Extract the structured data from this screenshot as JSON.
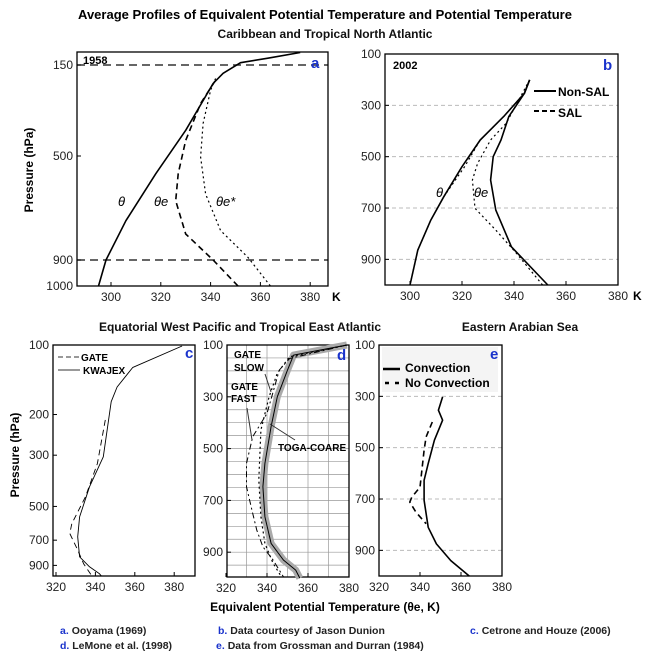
{
  "title": "Average Profiles of Equivalent Potential Temperature and Potential Temperature",
  "subtitle_top": "Caribbean and Tropical North Atlantic",
  "subtitle_bottom_left": "Equatorial West Pacific and Tropical East Atlantic",
  "subtitle_bottom_right": "Eastern Arabian Sea",
  "ylabel": "Pressure (hPa)",
  "xlabel": "Equivalent Potential Temperature (θe, K)",
  "k_unit": "K",
  "credits": [
    {
      "letter": "a.",
      "text": "Ooyama (1969)"
    },
    {
      "letter": "b.",
      "text": "Data courtesy of Jason Dunion"
    },
    {
      "letter": "c.",
      "text": "Cetrone and Houze (2006)"
    },
    {
      "letter": "d.",
      "text": "LeMone et al. (1998)"
    },
    {
      "letter": "e.",
      "text": "Data from Grossman and Durran (1984)"
    }
  ],
  "colors": {
    "panel_letter": "#1a33cc",
    "band": "#aaaaaa",
    "grid": "#bbbbbb"
  },
  "chart_data": [
    {
      "type": "line",
      "panel": "a",
      "year": "1958",
      "xlabel": "K",
      "ylabel": "Pressure (hPa)",
      "xlim": [
        286,
        386
      ],
      "ylim": [
        1000,
        100
      ],
      "xticks": [
        300,
        320,
        340,
        360,
        380
      ],
      "yticks": [
        150,
        500,
        900,
        1000
      ],
      "reference_lines_hpa": [
        150,
        900
      ],
      "annotations": [
        "θ",
        "θe",
        "θe*"
      ],
      "series": [
        {
          "name": "θ",
          "style": "solid",
          "points": [
            [
              295,
              1000
            ],
            [
              298,
              900
            ],
            [
              306,
              749
            ],
            [
              318,
              568
            ],
            [
              330,
              401
            ],
            [
              341,
              221
            ],
            [
              345,
              182
            ],
            [
              352,
              141
            ],
            [
              363,
              124
            ],
            [
              376,
              102
            ]
          ]
        },
        {
          "name": "θe",
          "style": "dashed",
          "points": [
            [
              351,
              1000
            ],
            [
              341,
              900
            ],
            [
              330,
              800
            ],
            [
              326,
              672
            ],
            [
              327,
              568
            ],
            [
              330,
              440
            ],
            [
              336,
              298
            ],
            [
              342,
              208
            ]
          ]
        },
        {
          "name": "θe*",
          "style": "dotted",
          "points": [
            [
              364,
              1000
            ],
            [
              355,
              890
            ],
            [
              344,
              787
            ],
            [
              338,
              646
            ],
            [
              336,
              504
            ],
            [
              337,
              375
            ],
            [
              340,
              247
            ],
            [
              342,
              202
            ]
          ]
        }
      ]
    },
    {
      "type": "line",
      "panel": "b",
      "year": "2002",
      "xlim": [
        290,
        380
      ],
      "ylim": [
        1000,
        100
      ],
      "xticks": [
        300,
        320,
        340,
        360,
        380
      ],
      "yticks": [
        100,
        300,
        500,
        700,
        900
      ],
      "grid": true,
      "legend": [
        "Non-SAL",
        "SAL"
      ],
      "legend_position": "top-right",
      "annotations": [
        "θ",
        "θe"
      ],
      "series": [
        {
          "name": "θ Non-SAL",
          "style": "solid",
          "points": [
            [
              300,
              1000
            ],
            [
              303,
              864
            ],
            [
              308,
              747
            ],
            [
              313,
              656
            ],
            [
              320,
              539
            ],
            [
              327,
              435
            ],
            [
              336,
              344
            ],
            [
              344,
              253
            ],
            [
              346,
              201
            ]
          ]
        },
        {
          "name": "θ SAL",
          "style": "dotted",
          "points": [
            [
              300,
              1000
            ],
            [
              303,
              864
            ],
            [
              308,
              747
            ],
            [
              313,
              656
            ],
            [
              321,
              539
            ],
            [
              327,
              435
            ],
            [
              336,
              344
            ],
            [
              344,
              253
            ],
            [
              346,
              201
            ]
          ]
        },
        {
          "name": "θe Non-SAL",
          "style": "solid",
          "points": [
            [
              353,
              1000
            ],
            [
              339,
              851
            ],
            [
              333,
              708
            ],
            [
              331,
              591
            ],
            [
              332,
              500
            ],
            [
              335,
              435
            ],
            [
              338,
              344
            ],
            [
              344,
              253
            ],
            [
              346,
              201
            ]
          ]
        },
        {
          "name": "θe SAL",
          "style": "dotted",
          "points": [
            [
              351,
              1000
            ],
            [
              341,
              877
            ],
            [
              333,
              786
            ],
            [
              325,
              701
            ],
            [
              324,
              591
            ],
            [
              326,
              526
            ],
            [
              331,
              435
            ],
            [
              337,
              370
            ],
            [
              346,
              201
            ]
          ]
        }
      ]
    },
    {
      "type": "line",
      "panel": "c",
      "xlim": [
        318,
        390
      ],
      "ylim": [
        1000,
        100
      ],
      "yscale": "log",
      "xticks": [
        320,
        340,
        360,
        380
      ],
      "yticks": [
        100,
        200,
        300,
        500,
        700,
        900
      ],
      "legend": [
        "GATE",
        "KWAJEX"
      ],
      "legend_position": "top-left",
      "series": [
        {
          "name": "GATE",
          "style": "dashed",
          "points": [
            [
              345,
              211
            ],
            [
              341,
              326
            ],
            [
              335,
              454
            ],
            [
              328,
              594
            ],
            [
              327,
              655
            ],
            [
              331,
              772
            ],
            [
              334,
              885
            ],
            [
              338,
              995
            ]
          ]
        },
        {
          "name": "KWAJEX",
          "style": "solid",
          "points": [
            [
              384,
              101
            ],
            [
              359,
              125
            ],
            [
              351,
              152
            ],
            [
              348,
              176
            ],
            [
              344,
              305
            ],
            [
              337,
              411
            ],
            [
              332,
              555
            ],
            [
              331,
              677
            ],
            [
              332,
              826
            ],
            [
              337,
              913
            ],
            [
              342,
              977
            ],
            [
              343,
              1000
            ]
          ]
        }
      ]
    },
    {
      "type": "line",
      "panel": "d",
      "xlim": [
        320,
        380
      ],
      "ylim": [
        1000,
        100
      ],
      "xticks": [
        320,
        340,
        360,
        380
      ],
      "yticks": [
        100,
        300,
        500,
        700,
        900
      ],
      "grid": true,
      "labels": [
        "GATE",
        "SLOW",
        "GATE",
        "FAST",
        "TOGA-COARE"
      ],
      "series": [
        {
          "name": "TOGA-COARE",
          "style": "solid-with-band",
          "points": [
            [
              379,
              100
            ],
            [
              353,
              139
            ],
            [
              350,
              197
            ],
            [
              345,
              300
            ],
            [
              342,
              415
            ],
            [
              339,
              557
            ],
            [
              338,
              647
            ],
            [
              339,
              763
            ],
            [
              342,
              866
            ],
            [
              348,
              930
            ],
            [
              354,
              969
            ],
            [
              356,
              1000
            ]
          ]
        },
        {
          "name": "GATE SLOW",
          "style": "dotted",
          "points": [
            [
              379,
              100
            ],
            [
              351,
              145
            ],
            [
              345,
              209
            ],
            [
              341,
              300
            ],
            [
              337,
              428
            ],
            [
              336,
              621
            ],
            [
              337,
              763
            ],
            [
              339,
              866
            ],
            [
              343,
              943
            ],
            [
              347,
              995
            ]
          ]
        },
        {
          "name": "GATE FAST",
          "style": "dash-dot",
          "points": [
            [
              379,
              100
            ],
            [
              351,
              152
            ],
            [
              346,
              197
            ],
            [
              340,
              364
            ],
            [
              333,
              454
            ],
            [
              330,
              557
            ],
            [
              330,
              647
            ],
            [
              333,
              750
            ],
            [
              335,
              815
            ],
            [
              338,
              879
            ],
            [
              343,
              930
            ],
            [
              348,
              995
            ]
          ]
        }
      ]
    },
    {
      "type": "line",
      "panel": "e",
      "xlim": [
        320,
        380
      ],
      "ylim": [
        1000,
        100
      ],
      "xticks": [
        320,
        340,
        360,
        380
      ],
      "yticks": [
        100,
        300,
        500,
        700,
        900
      ],
      "grid": true,
      "legend": [
        "Convection",
        "No Convection"
      ],
      "legend_position": "top",
      "series": [
        {
          "name": "Convection",
          "style": "solid",
          "points": [
            [
              351,
              302
            ],
            [
              349,
              354
            ],
            [
              351,
              393
            ],
            [
              347,
              471
            ],
            [
              344,
              562
            ],
            [
              342,
              627
            ],
            [
              342,
              705
            ],
            [
              344,
              810
            ],
            [
              348,
              875
            ],
            [
              355,
              940
            ],
            [
              364,
              1000
            ]
          ]
        },
        {
          "name": "No Convection",
          "style": "dashed",
          "points": [
            [
              346,
              400
            ],
            [
              343,
              458
            ],
            [
              342,
              510
            ],
            [
              340,
              654
            ],
            [
              336,
              693
            ],
            [
              335,
              712
            ],
            [
              338,
              751
            ],
            [
              343,
              796
            ]
          ]
        }
      ]
    }
  ]
}
